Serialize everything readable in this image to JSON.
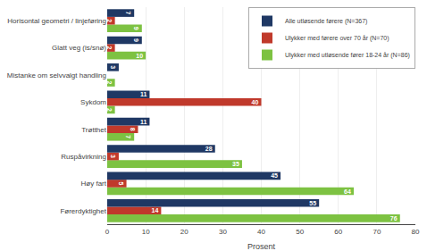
{
  "chart_data": {
    "type": "bar",
    "orientation": "horizontal",
    "categories": [
      "Førerdyktighet",
      "Høy fart",
      "Ruspåvirkning",
      "Trøtthet",
      "Sykdom",
      "Mistanke om selvvalgt handling",
      "Glatt veg (is/snø)",
      "Horisontal geometri / linjeføring"
    ],
    "series": [
      {
        "name": "Alle utløsende førere (N=367)",
        "color": "#1F3864",
        "values": [
          55,
          45,
          28,
          11,
          11,
          3,
          9,
          7
        ]
      },
      {
        "name": "Ulykker med førere over 70 år (N=70)",
        "color": "#C0392B",
        "values": [
          14,
          5,
          3,
          8,
          40,
          0,
          2,
          2
        ]
      },
      {
        "name": "Ulykker med utløsende fører 18-24 år (N=86)",
        "color": "#7DC242",
        "values": [
          76,
          64,
          35,
          7,
          2,
          2,
          10,
          9
        ]
      }
    ],
    "xlabel": "Prosent",
    "xlim": [
      0,
      80
    ],
    "xticks": [
      0,
      10,
      20,
      30,
      40,
      50,
      60,
      70,
      80
    ],
    "grid": true,
    "legend": "upper right",
    "data_labels": true
  }
}
